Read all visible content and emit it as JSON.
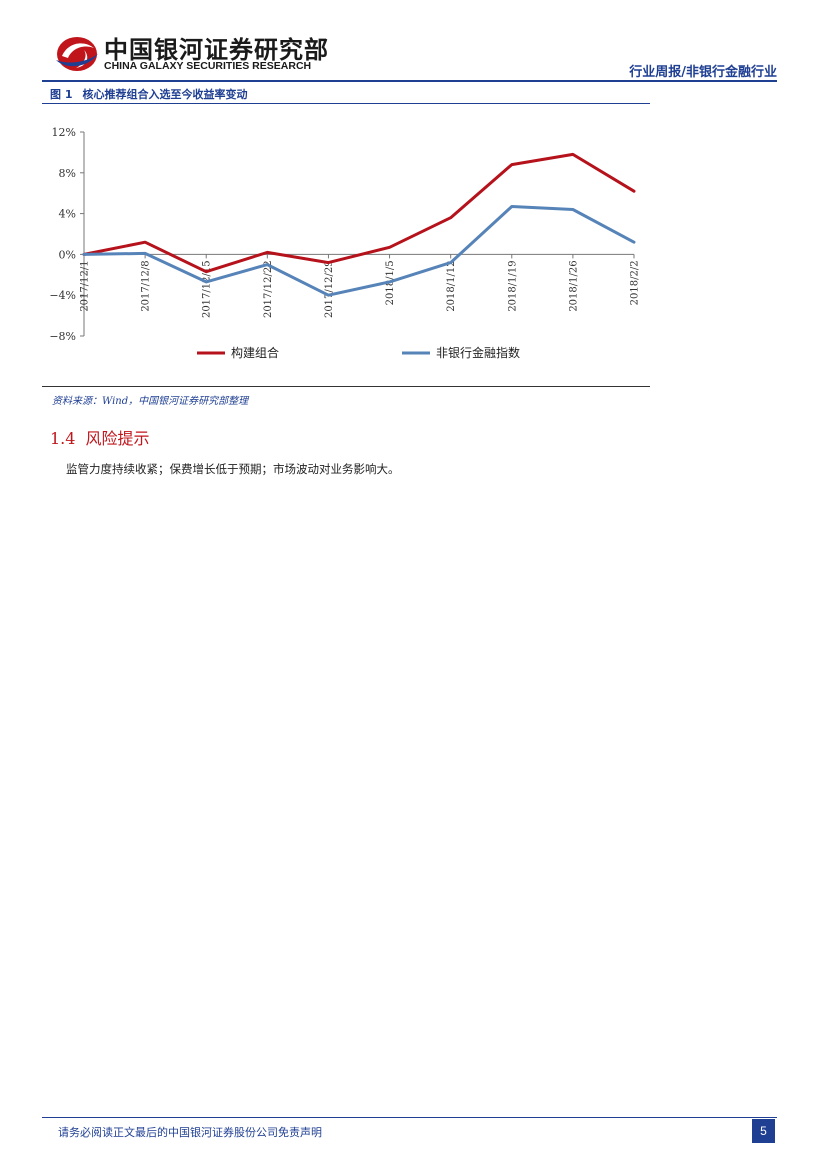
{
  "header": {
    "brand_cn": "中国银河证券研究部",
    "brand_en": "CHINA GALAXY SECURITIES RESEARCH",
    "report_type": "行业周报/非银行金融行业"
  },
  "figure": {
    "number": "图 1",
    "title": "核心推荐组合入选至今收益率变动",
    "source": "资料来源：Wind，中国银河证券研究部整理"
  },
  "chart_data": {
    "type": "line",
    "categories": [
      "2017/12/1",
      "2017/12/8",
      "2017/12/15",
      "2017/12/22",
      "2017/12/29",
      "2018/1/5",
      "2018/1/12",
      "2018/1/19",
      "2018/1/26",
      "2018/2/2"
    ],
    "y_ticks": [
      "12%",
      "8%",
      "4%",
      "0%",
      "−4%",
      "−8%"
    ],
    "ylim": [
      -8,
      12
    ],
    "unit": "%",
    "grid": false,
    "legend_position": "bottom",
    "series": [
      {
        "name": "构建组合",
        "color": "#b5121b",
        "values": [
          0.0,
          1.2,
          -1.7,
          0.2,
          -0.8,
          0.7,
          3.6,
          8.8,
          9.8,
          6.2
        ]
      },
      {
        "name": "非银行金融指数",
        "color": "#5683b8",
        "values": [
          0.0,
          0.1,
          -2.7,
          -1.0,
          -4.0,
          -2.7,
          -0.8,
          4.7,
          4.4,
          1.2
        ]
      }
    ]
  },
  "section": {
    "number": "1.4",
    "title": "风险提示",
    "body": "监管力度持续收紧；保费增长低于预期；市场波动对业务影响大。"
  },
  "footer": {
    "disclaimer": "请务必阅读正文最后的中国银河证券股份公司免责声明",
    "page_number": "5"
  }
}
